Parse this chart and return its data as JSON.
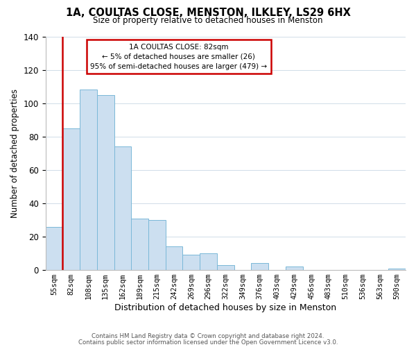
{
  "title": "1A, COULTAS CLOSE, MENSTON, ILKLEY, LS29 6HX",
  "subtitle": "Size of property relative to detached houses in Menston",
  "xlabel": "Distribution of detached houses by size in Menston",
  "ylabel": "Number of detached properties",
  "bar_labels": [
    "55sqm",
    "82sqm",
    "108sqm",
    "135sqm",
    "162sqm",
    "189sqm",
    "215sqm",
    "242sqm",
    "269sqm",
    "296sqm",
    "322sqm",
    "349sqm",
    "376sqm",
    "403sqm",
    "429sqm",
    "456sqm",
    "483sqm",
    "510sqm",
    "536sqm",
    "563sqm",
    "590sqm"
  ],
  "bar_values": [
    26,
    85,
    108,
    105,
    74,
    31,
    30,
    14,
    9,
    10,
    3,
    0,
    4,
    0,
    2,
    0,
    0,
    0,
    0,
    0,
    1
  ],
  "bar_color": "#ccdff0",
  "bar_edge_color": "#7ab8d8",
  "highlight_bar_index": 1,
  "ylim": [
    0,
    140
  ],
  "yticks": [
    0,
    20,
    40,
    60,
    80,
    100,
    120,
    140
  ],
  "red_line_color": "#cc0000",
  "annotation_title": "1A COULTAS CLOSE: 82sqm",
  "annotation_line1": "← 5% of detached houses are smaller (26)",
  "annotation_line2": "95% of semi-detached houses are larger (479) →",
  "annotation_box_facecolor": "#ffffff",
  "annotation_box_edgecolor": "#cc0000",
  "footer_line1": "Contains HM Land Registry data © Crown copyright and database right 2024.",
  "footer_line2": "Contains public sector information licensed under the Open Government Licence v3.0.",
  "background_color": "#ffffff",
  "grid_color": "#d0dce8"
}
